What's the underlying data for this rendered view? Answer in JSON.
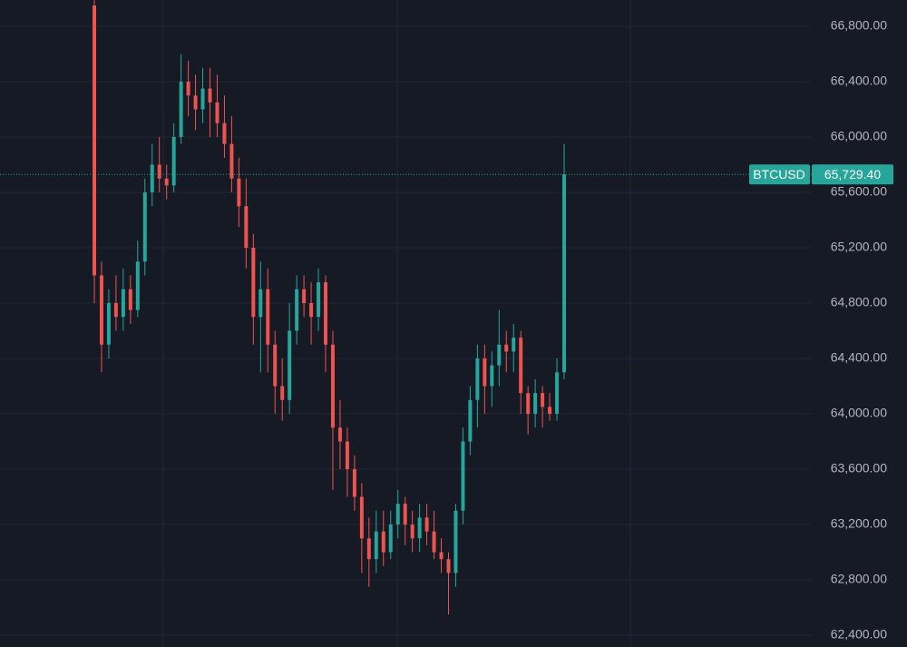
{
  "chart_data": {
    "type": "candlestick",
    "symbol": "BTCUSD",
    "up_color": "#26a69a",
    "down_color": "#ef5350",
    "last_price": {
      "value": 65729.4,
      "label": "65,729.40"
    },
    "ylim": [
      62315,
      66990
    ],
    "yticks": [
      {
        "value": 62400,
        "label": "62,400.00"
      },
      {
        "value": 62800,
        "label": "62,800.00"
      },
      {
        "value": 63200,
        "label": "63,200.00"
      },
      {
        "value": 63600,
        "label": "63,600.00"
      },
      {
        "value": 64000,
        "label": "64,000.00"
      },
      {
        "value": 64400,
        "label": "64,400.00"
      },
      {
        "value": 64800,
        "label": "64,800.00"
      },
      {
        "value": 65200,
        "label": "65,200.00"
      },
      {
        "value": 65600,
        "label": "65,600.00"
      },
      {
        "value": 66000,
        "label": "66,000.00"
      },
      {
        "value": 66400,
        "label": "66,400.00"
      },
      {
        "value": 66800,
        "label": "66,800.00"
      }
    ],
    "grid": true,
    "open": [
      66950,
      65000,
      64500,
      64800,
      64700,
      64900,
      64750,
      65100,
      65600,
      65800,
      65700,
      65650,
      66000,
      66400,
      66300,
      66200,
      66350,
      66250,
      66100,
      65950,
      65700,
      65500,
      65200,
      64700,
      64900,
      64500,
      64200,
      64100,
      64600,
      64900,
      64800,
      64700,
      64950,
      64500,
      63900,
      63800,
      63600,
      63400,
      63100,
      62950,
      63150,
      63000,
      63200,
      63350,
      63200,
      63100,
      63250,
      63150,
      63000,
      62950,
      62850,
      63300,
      63800,
      64100,
      64400,
      64200,
      64350,
      64500,
      64450,
      64550,
      64150,
      64000,
      64150,
      64050,
      64000,
      64300
    ],
    "high": [
      67000,
      65100,
      64900,
      65000,
      65050,
      65000,
      65250,
      65700,
      65950,
      66000,
      65800,
      66100,
      66600,
      66550,
      66450,
      66500,
      66500,
      66450,
      66300,
      66150,
      65850,
      65700,
      65300,
      65100,
      65050,
      64600,
      64400,
      64800,
      65000,
      65000,
      64950,
      65050,
      65000,
      64600,
      64100,
      63900,
      63700,
      63500,
      63250,
      63300,
      63300,
      63300,
      63450,
      63400,
      63300,
      63350,
      63350,
      63300,
      63100,
      63000,
      63350,
      63900,
      64200,
      64500,
      64500,
      64450,
      64750,
      64600,
      64650,
      64600,
      64200,
      64250,
      64200,
      64150,
      64400,
      65950
    ],
    "low": [
      64800,
      64300,
      64400,
      64600,
      64600,
      64650,
      64700,
      65000,
      65500,
      65600,
      65550,
      65600,
      65950,
      66150,
      66050,
      66100,
      66000,
      66000,
      65850,
      65600,
      65350,
      65050,
      64500,
      64300,
      64300,
      64000,
      63950,
      64000,
      64500,
      64700,
      64500,
      64600,
      64300,
      63450,
      63600,
      63400,
      63300,
      62850,
      62750,
      62850,
      62900,
      62950,
      63100,
      63050,
      63000,
      63000,
      63050,
      62950,
      62850,
      62550,
      62750,
      63200,
      63700,
      63900,
      64000,
      64050,
      64200,
      64300,
      64300,
      64000,
      63850,
      63900,
      63900,
      63950,
      63950,
      64250
    ],
    "close": [
      65000,
      64500,
      64800,
      64700,
      64900,
      64750,
      65100,
      65600,
      65800,
      65700,
      65650,
      66000,
      66400,
      66300,
      66200,
      66350,
      66250,
      66100,
      65950,
      65700,
      65500,
      65200,
      64700,
      64900,
      64500,
      64200,
      64100,
      64600,
      64900,
      64800,
      64700,
      64950,
      64500,
      63900,
      63800,
      63600,
      63400,
      63100,
      62950,
      63150,
      63000,
      63200,
      63350,
      63200,
      63100,
      63250,
      63150,
      63000,
      62950,
      62850,
      63300,
      63800,
      64100,
      64400,
      64200,
      64350,
      64500,
      64450,
      64550,
      64150,
      64000,
      64150,
      64050,
      64000,
      64300,
      65729.4
    ]
  }
}
